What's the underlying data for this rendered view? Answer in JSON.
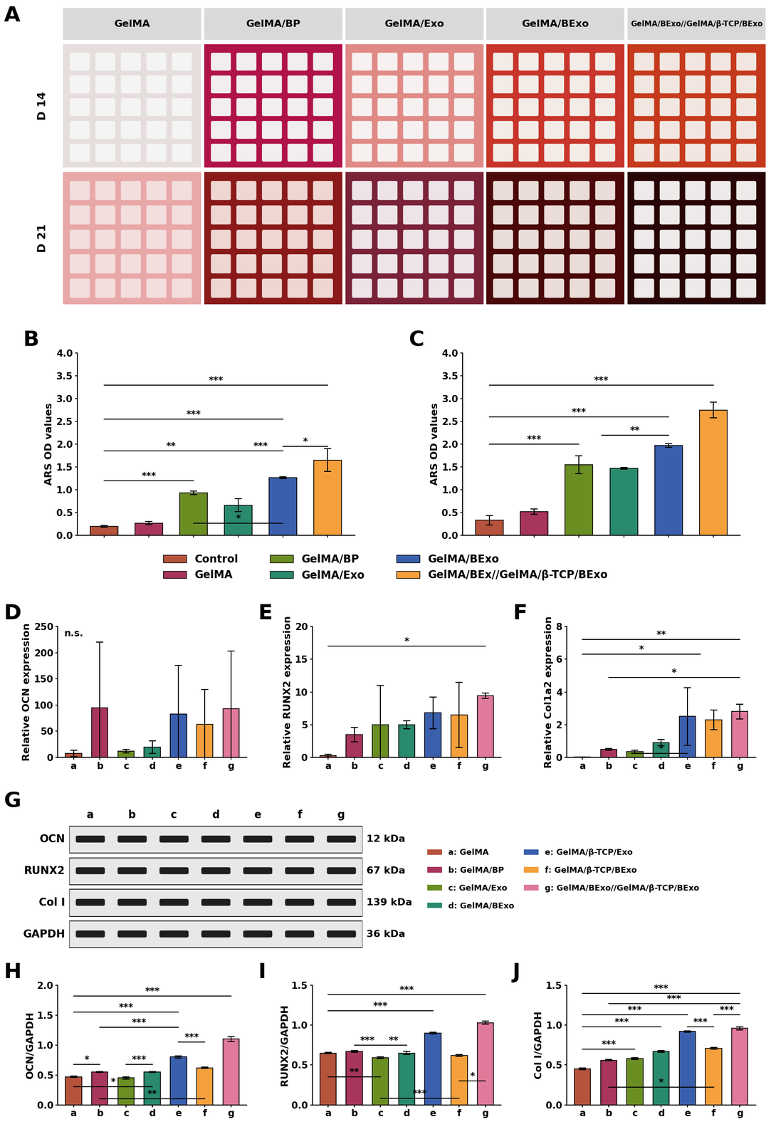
{
  "chart_data": [
    {
      "type": "bar",
      "panel": "B",
      "ylabel": "ARS OD values",
      "categories": [
        "Control",
        "GelMA",
        "GelMA/BP",
        "GelMA/Exo",
        "GelMA/BExo",
        "GelMA/BEx//GelMA/β-TCP/BExo"
      ],
      "values": [
        0.2,
        0.27,
        0.93,
        0.66,
        1.27,
        1.65
      ],
      "errors": [
        0.02,
        0.03,
        0.04,
        0.14,
        0.02,
        0.25
      ],
      "colors": [
        "#b5533c",
        "#a8365a",
        "#6b8e23",
        "#2a8a6e",
        "#3a5fad",
        "#f4a03c"
      ],
      "ylim": [
        0,
        4.0
      ],
      "yticks": [
        {
          "value": 0,
          "label": "0.0"
        },
        {
          "value": 0.5,
          "label": "0.5"
        },
        {
          "value": 1.0,
          "label": "1.0"
        },
        {
          "value": 1.5,
          "label": "1.5"
        },
        {
          "value": 2.0,
          "label": "2.0"
        },
        {
          "value": 2.5,
          "label": "2.5"
        },
        {
          "value": 3.0,
          "label": "3.0"
        },
        {
          "value": 3.5,
          "label": "3.5"
        },
        {
          "value": 4.0,
          "label": "4.0"
        }
      ],
      "tick_labels": "y",
      "legend": "upper center",
      "annotations": [
        {
          "text": "***",
          "x1": 0,
          "x2": 5,
          "y": 3.3
        },
        {
          "text": "***",
          "x1": 0,
          "x2": 4,
          "y": 2.55
        },
        {
          "text": "**",
          "x1": 0,
          "x2": 3,
          "y": 1.85
        },
        {
          "text": "***",
          "x1": 0,
          "x2": 2,
          "y": 1.2
        },
        {
          "text": "***",
          "x1": 3,
          "x2": 4,
          "y": 1.85
        },
        {
          "text": "*",
          "x1": 4,
          "x2": 5,
          "y": 1.95
        },
        {
          "text": "*",
          "x1": 2,
          "x2": 4,
          "y": 0.27
        }
      ]
    },
    {
      "type": "bar",
      "panel": "C",
      "ylabel": "ARS OD values",
      "categories": [
        "Control",
        "GelMA",
        "GelMA/BP",
        "GelMA/Exo",
        "GelMA/BExo",
        "GelMA/BEx//GelMA/β-TCP/BExo"
      ],
      "values": [
        0.33,
        0.52,
        1.55,
        1.47,
        1.97,
        2.75
      ],
      "errors": [
        0.1,
        0.06,
        0.2,
        0.02,
        0.04,
        0.17
      ],
      "colors": [
        "#b5533c",
        "#a8365a",
        "#6b8e23",
        "#2a8a6e",
        "#3a5fad",
        "#f4a03c"
      ],
      "ylim": [
        0,
        4.0
      ],
      "yticks": [
        {
          "value": 0,
          "label": "0.0"
        },
        {
          "value": 0.5,
          "label": "0.5"
        },
        {
          "value": 1.0,
          "label": "1.0"
        },
        {
          "value": 1.5,
          "label": "1.5"
        },
        {
          "value": 2.0,
          "label": "2.0"
        },
        {
          "value": 2.5,
          "label": "2.5"
        },
        {
          "value": 3.0,
          "label": "3.0"
        },
        {
          "value": 3.5,
          "label": "3.5"
        },
        {
          "value": 4.0,
          "label": "4.0"
        }
      ],
      "tick_labels": "y",
      "annotations": [
        {
          "text": "***",
          "x1": 0,
          "x2": 5,
          "y": 3.3
        },
        {
          "text": "***",
          "x1": 0,
          "x2": 4,
          "y": 2.6
        },
        {
          "text": "***",
          "x1": 0,
          "x2": 2,
          "y": 2.0
        },
        {
          "text": "**",
          "x1": 2.5,
          "x2": 4,
          "y": 2.2
        }
      ]
    },
    {
      "type": "bar",
      "panel": "D",
      "ylabel": "Relative OCN expression",
      "categories": [
        "a",
        "b",
        "c",
        "d",
        "e",
        "f",
        "g"
      ],
      "values": [
        8,
        95,
        12,
        20,
        83,
        63,
        93
      ],
      "errors": [
        6,
        125,
        3,
        12,
        93,
        67,
        110
      ],
      "colors": [
        "#b5533c",
        "#a8365a",
        "#6b8e23",
        "#2a8a6e",
        "#3a5fad",
        "#f4a03c",
        "#e07a9a"
      ],
      "ylim": [
        0,
        250
      ],
      "yticks": [
        0,
        50,
        100,
        150,
        200,
        250
      ],
      "annotations": [
        {
          "text": "n.s.",
          "x1": 0,
          "x2": 0,
          "y": 228
        }
      ]
    },
    {
      "type": "bar",
      "panel": "E",
      "ylabel": "Relative RUNX2 expression",
      "categories": [
        "a",
        "b",
        "c",
        "d",
        "e",
        "f",
        "g"
      ],
      "values": [
        0.3,
        3.5,
        5.0,
        5.0,
        6.8,
        6.5,
        9.4
      ],
      "errors": [
        0.2,
        1.1,
        6.0,
        0.6,
        2.4,
        5.0,
        0.4
      ],
      "colors": [
        "#b5533c",
        "#a8365a",
        "#6b8e23",
        "#2a8a6e",
        "#3a5fad",
        "#f4a03c",
        "#e07a9a"
      ],
      "ylim": [
        0,
        20
      ],
      "yticks": [
        0,
        5,
        10,
        15,
        20
      ],
      "annotations": [
        {
          "text": "*",
          "x1": 0,
          "x2": 6,
          "y": 17
        }
      ]
    },
    {
      "type": "bar",
      "panel": "F",
      "ylabel": "Relative Col1a2 expression",
      "categories": [
        "a",
        "b",
        "c",
        "d",
        "e",
        "f",
        "g"
      ],
      "values": [
        0.02,
        0.5,
        0.35,
        0.9,
        2.5,
        2.3,
        2.8
      ],
      "errors": [
        0.01,
        0.05,
        0.1,
        0.2,
        1.75,
        0.6,
        0.45
      ],
      "colors": [
        "#b5533c",
        "#a8365a",
        "#6b8e23",
        "#2a8a6e",
        "#3a5fad",
        "#f4a03c",
        "#e07a9a"
      ],
      "ylim": [
        0,
        8
      ],
      "yticks": [
        0,
        2,
        4,
        6,
        8
      ],
      "annotations": [
        {
          "text": "**",
          "x1": 0,
          "x2": 6,
          "y": 7.2
        },
        {
          "text": "*",
          "x1": 0,
          "x2": 4.5,
          "y": 6.3
        },
        {
          "text": "*",
          "x1": 1,
          "x2": 6,
          "y": 4.9
        },
        {
          "text": "*",
          "x1": 2,
          "x2": 4,
          "y": 0.25
        }
      ]
    },
    {
      "type": "bar",
      "panel": "H",
      "ylabel": "OCN/GAPDH",
      "categories": [
        "a",
        "b",
        "c",
        "d",
        "e",
        "f",
        "g"
      ],
      "values": [
        0.47,
        0.55,
        0.45,
        0.55,
        0.8,
        0.62,
        1.1
      ],
      "errors": [
        0.01,
        0.01,
        0.02,
        0.01,
        0.02,
        0.01,
        0.04
      ],
      "colors": [
        "#b5533c",
        "#a8365a",
        "#6b8e23",
        "#2a8a6e",
        "#3a5fad",
        "#f4a03c",
        "#e07a9a"
      ],
      "ylim": [
        0,
        2.0
      ],
      "yticks": [
        {
          "value": 0,
          "label": "0.0"
        },
        {
          "value": 0.5,
          "label": "0.5"
        },
        {
          "value": 1.0,
          "label": "1.0"
        },
        {
          "value": 1.5,
          "label": "1.5"
        },
        {
          "value": 2.0,
          "label": "2.0"
        }
      ],
      "annotations": [
        {
          "text": "***",
          "x1": 0,
          "x2": 6,
          "y": 1.82
        },
        {
          "text": "***",
          "x1": 0,
          "x2": 4,
          "y": 1.55
        },
        {
          "text": "***",
          "x1": 1,
          "x2": 4,
          "y": 1.3
        },
        {
          "text": "***",
          "x1": 4,
          "x2": 5,
          "y": 1.05
        },
        {
          "text": "*",
          "x1": 0,
          "x2": 1,
          "y": 0.68
        },
        {
          "text": "***",
          "x1": 2,
          "x2": 3,
          "y": 0.68
        },
        {
          "text": "*",
          "x1": 0,
          "x2": 3,
          "y": 0.3
        },
        {
          "text": "**",
          "x1": 1,
          "x2": 5,
          "y": 0.1
        }
      ]
    },
    {
      "type": "bar",
      "panel": "I",
      "ylabel": "RUNX2/GAPDH",
      "categories": [
        "a",
        "b",
        "c",
        "d",
        "e",
        "f",
        "g"
      ],
      "values": [
        0.65,
        0.67,
        0.59,
        0.65,
        0.9,
        0.62,
        1.03
      ],
      "errors": [
        0.01,
        0.01,
        0.01,
        0.02,
        0.01,
        0.01,
        0.02
      ],
      "colors": [
        "#b5533c",
        "#a8365a",
        "#6b8e23",
        "#2a8a6e",
        "#3a5fad",
        "#f4a03c",
        "#e07a9a"
      ],
      "ylim": [
        0,
        1.5
      ],
      "yticks": [
        {
          "value": 0,
          "label": "0.0"
        },
        {
          "value": 0.5,
          "label": "0.5"
        },
        {
          "value": 1.0,
          "label": "1.0"
        },
        {
          "value": 1.5,
          "label": "1.5"
        }
      ],
      "annotations": [
        {
          "text": "***",
          "x1": 0,
          "x2": 6,
          "y": 1.38
        },
        {
          "text": "***",
          "x1": 0,
          "x2": 4,
          "y": 1.18
        },
        {
          "text": "***",
          "x1": 1,
          "x2": 2,
          "y": 0.75
        },
        {
          "text": "**",
          "x1": 2,
          "x2": 3,
          "y": 0.75
        },
        {
          "text": "**",
          "x1": 0,
          "x2": 2,
          "y": 0.35
        },
        {
          "text": "***",
          "x1": 2,
          "x2": 5,
          "y": 0.08
        },
        {
          "text": "*",
          "x1": 5,
          "x2": 6,
          "y": 0.3
        }
      ]
    },
    {
      "type": "bar",
      "panel": "J",
      "ylabel": "Col I/GAPDH",
      "categories": [
        "a",
        "b",
        "c",
        "d",
        "e",
        "f",
        "g"
      ],
      "values": [
        0.45,
        0.56,
        0.58,
        0.67,
        0.92,
        0.71,
        0.96
      ],
      "errors": [
        0.01,
        0.01,
        0.01,
        0.01,
        0.01,
        0.01,
        0.02
      ],
      "colors": [
        "#b5533c",
        "#a8365a",
        "#6b8e23",
        "#2a8a6e",
        "#3a5fad",
        "#f4a03c",
        "#e07a9a"
      ],
      "ylim": [
        0,
        1.5
      ],
      "yticks": [
        {
          "value": 0,
          "label": "0.0"
        },
        {
          "value": 0.5,
          "label": "0.5"
        },
        {
          "value": 1.0,
          "label": "1.0"
        },
        {
          "value": 1.5,
          "label": "1.5"
        }
      ],
      "annotations": [
        {
          "text": "***",
          "x1": 0,
          "x2": 6,
          "y": 1.4
        },
        {
          "text": "***",
          "x1": 1,
          "x2": 6,
          "y": 1.27
        },
        {
          "text": "***",
          "x1": 0,
          "x2": 4,
          "y": 1.13
        },
        {
          "text": "***",
          "x1": 0,
          "x2": 3,
          "y": 0.98
        },
        {
          "text": "***",
          "x1": 5,
          "x2": 6,
          "y": 1.13
        },
        {
          "text": "***",
          "x1": 4,
          "x2": 5,
          "y": 0.98
        },
        {
          "text": "***",
          "x1": 0,
          "x2": 2,
          "y": 0.7
        },
        {
          "text": "*",
          "x1": 1,
          "x2": 5,
          "y": 0.22
        }
      ]
    }
  ],
  "panel_A": {
    "panel": "A",
    "columns": [
      "GelMA",
      "GelMA/BP",
      "GelMA/Exo",
      "GelMA/BExo",
      "GelMA/BExo//GelMA/β-TCP/BExo"
    ],
    "rows": [
      "D 14",
      "D 21"
    ]
  },
  "panel_G": {
    "panel": "G",
    "lanes": [
      "a",
      "b",
      "c",
      "d",
      "e",
      "f",
      "g"
    ],
    "proteins": [
      {
        "name": "OCN",
        "size": "12 kDa"
      },
      {
        "name": "RUNX2",
        "size": "67 kDa"
      },
      {
        "name": "Col I",
        "size": "139 kDa"
      },
      {
        "name": "GAPDH",
        "size": "36 kDa"
      }
    ],
    "legend": [
      {
        "label": "a: GelMA",
        "color": "#b5533c"
      },
      {
        "label": "b: GelMA/BP",
        "color": "#a8365a"
      },
      {
        "label": "c: GelMA/Exo",
        "color": "#6b8e23"
      },
      {
        "label": "d: GelMA/BExo",
        "color": "#2a8a6e"
      },
      {
        "label": "e: GelMA/β-TCP/Exo",
        "color": "#3a5fad"
      },
      {
        "label": "f: GelMA/β-TCP/BExo",
        "color": "#f4a03c"
      },
      {
        "label": "g: GelMA/BExo//GelMA/β-TCP/BExo",
        "color": "#e07a9a"
      }
    ]
  }
}
